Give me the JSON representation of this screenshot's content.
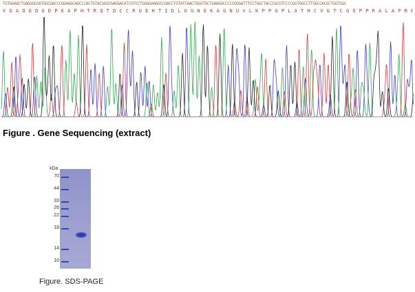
{
  "sequencing": {
    "nucleotide_line": "TGTGGAGCTGAGGGCGATGGCGACCCGGAGGCAGCCCACTGTACGGGCGAGGACATCGTCCTGGGGAAGGCCGACCTGTATCAACTGGGTGCTGAAGGCCCCCGGGATTTCCTGGCTACCCGCGTCCCCGGTGGCCTTGGCCACGCTGGTGGC",
    "amino_acid_line": "VGAQGDGDPEAPHTRQTDCCRUEHTIDLGGNEKAGNUVLKPPGPLATHCVGTCGQPPRALAPRBPT",
    "colors": {
      "A": "#2fa84f",
      "C": "#3a3ad0",
      "G": "#222222",
      "T": "#d23838"
    },
    "caption": "Figure . Gene Sequencing (extract)"
  },
  "sds_page": {
    "unit_label": "kDa",
    "markers": [
      "70",
      "44",
      "33",
      "26",
      "22",
      "18",
      "14",
      "10"
    ],
    "caption": "Figure. SDS-PAGE"
  }
}
